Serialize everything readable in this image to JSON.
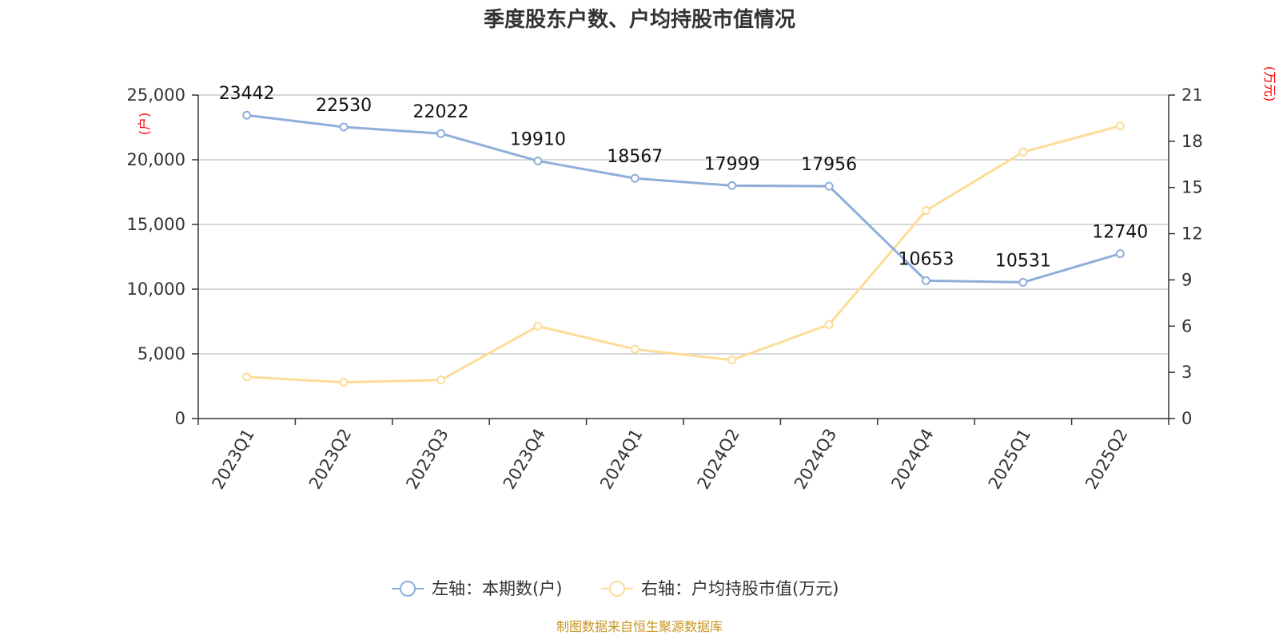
{
  "chart_data": {
    "type": "line",
    "title": "季度股东户数、户均持股市值情况",
    "categories": [
      "2023Q1",
      "2023Q2",
      "2023Q3",
      "2023Q4",
      "2024Q1",
      "2024Q2",
      "2024Q3",
      "2024Q4",
      "2025Q1",
      "2025Q2"
    ],
    "left_axis": {
      "unit": "(户)",
      "ylim": [
        0,
        25000
      ],
      "ticks": [
        0,
        5000,
        10000,
        15000,
        20000,
        25000
      ],
      "tick_labels": [
        "0",
        "5,000",
        "10,000",
        "15,000",
        "20,000",
        "25,000"
      ]
    },
    "right_axis": {
      "unit": "(万元)",
      "ylim": [
        0,
        21
      ],
      "ticks": [
        0,
        3,
        6,
        9,
        12,
        15,
        18,
        21
      ],
      "tick_labels": [
        "0",
        "3",
        "6",
        "9",
        "12",
        "15",
        "18",
        "21"
      ]
    },
    "series": [
      {
        "name": "左轴：本期数(户)",
        "axis": "left",
        "color": "#8eaedb",
        "values": [
          23442,
          22530,
          22022,
          19910,
          18567,
          17999,
          17956,
          10653,
          10531,
          12740
        ],
        "labels": [
          "23442",
          "22530",
          "22022",
          "19910",
          "18567",
          "17999",
          "17956",
          "10653",
          "10531",
          "12740"
        ]
      },
      {
        "name": "右轴：户均持股市值(万元)",
        "axis": "right",
        "color": "#fddc98",
        "values": [
          2.7,
          2.35,
          2.5,
          6.0,
          4.5,
          3.8,
          6.1,
          13.5,
          17.3,
          19.0
        ]
      }
    ],
    "grid": true,
    "legend_position": "bottom"
  },
  "source_note": "制图数据来自恒生聚源数据库"
}
